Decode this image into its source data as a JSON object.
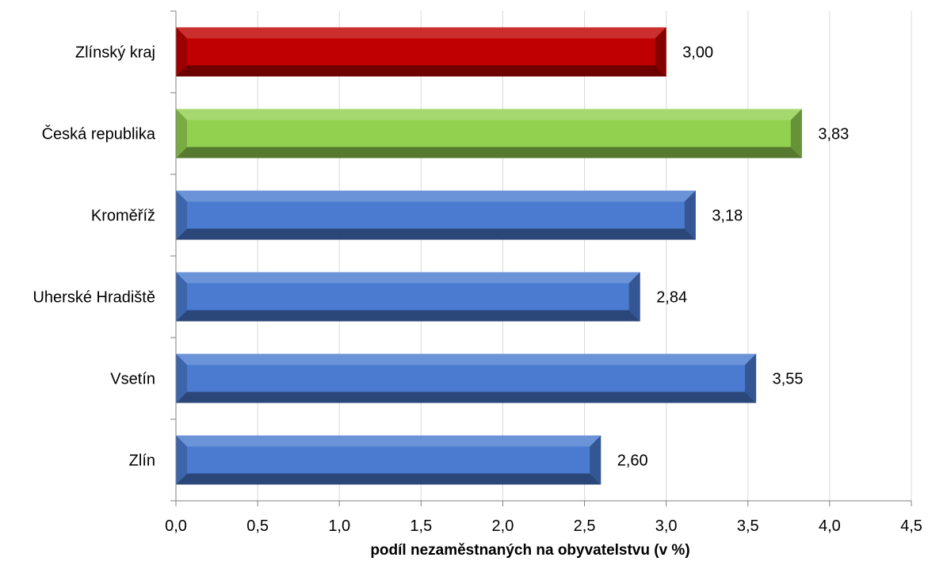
{
  "chart_data": {
    "type": "bar",
    "orientation": "horizontal",
    "categories": [
      "Zlínský kraj",
      "Česká republika",
      "Kroměříž",
      "Uherské Hradiště",
      "Vsetín",
      "Zlín"
    ],
    "values": [
      3.0,
      3.83,
      3.18,
      2.84,
      3.55,
      2.6
    ],
    "value_labels": [
      "3,00",
      "3,83",
      "3,18",
      "2,84",
      "3,55",
      "2,60"
    ],
    "bar_colors": [
      "#c00000",
      "#92d050",
      "#4a7bd0",
      "#4a7bd0",
      "#4a7bd0",
      "#4a7bd0"
    ],
    "xlabel": "podíl nezaměstnaných na obyvatelstvu (v %)",
    "xlim": [
      0,
      4.5
    ],
    "xticks": [
      0,
      0.5,
      1.0,
      1.5,
      2.0,
      2.5,
      3.0,
      3.5,
      4.0,
      4.5
    ],
    "xtick_labels": [
      "0,0",
      "0,5",
      "1,0",
      "1,5",
      "2,0",
      "2,5",
      "3,0",
      "3,5",
      "4,0",
      "4,5"
    ],
    "grid": "vertical",
    "legend": "none"
  }
}
